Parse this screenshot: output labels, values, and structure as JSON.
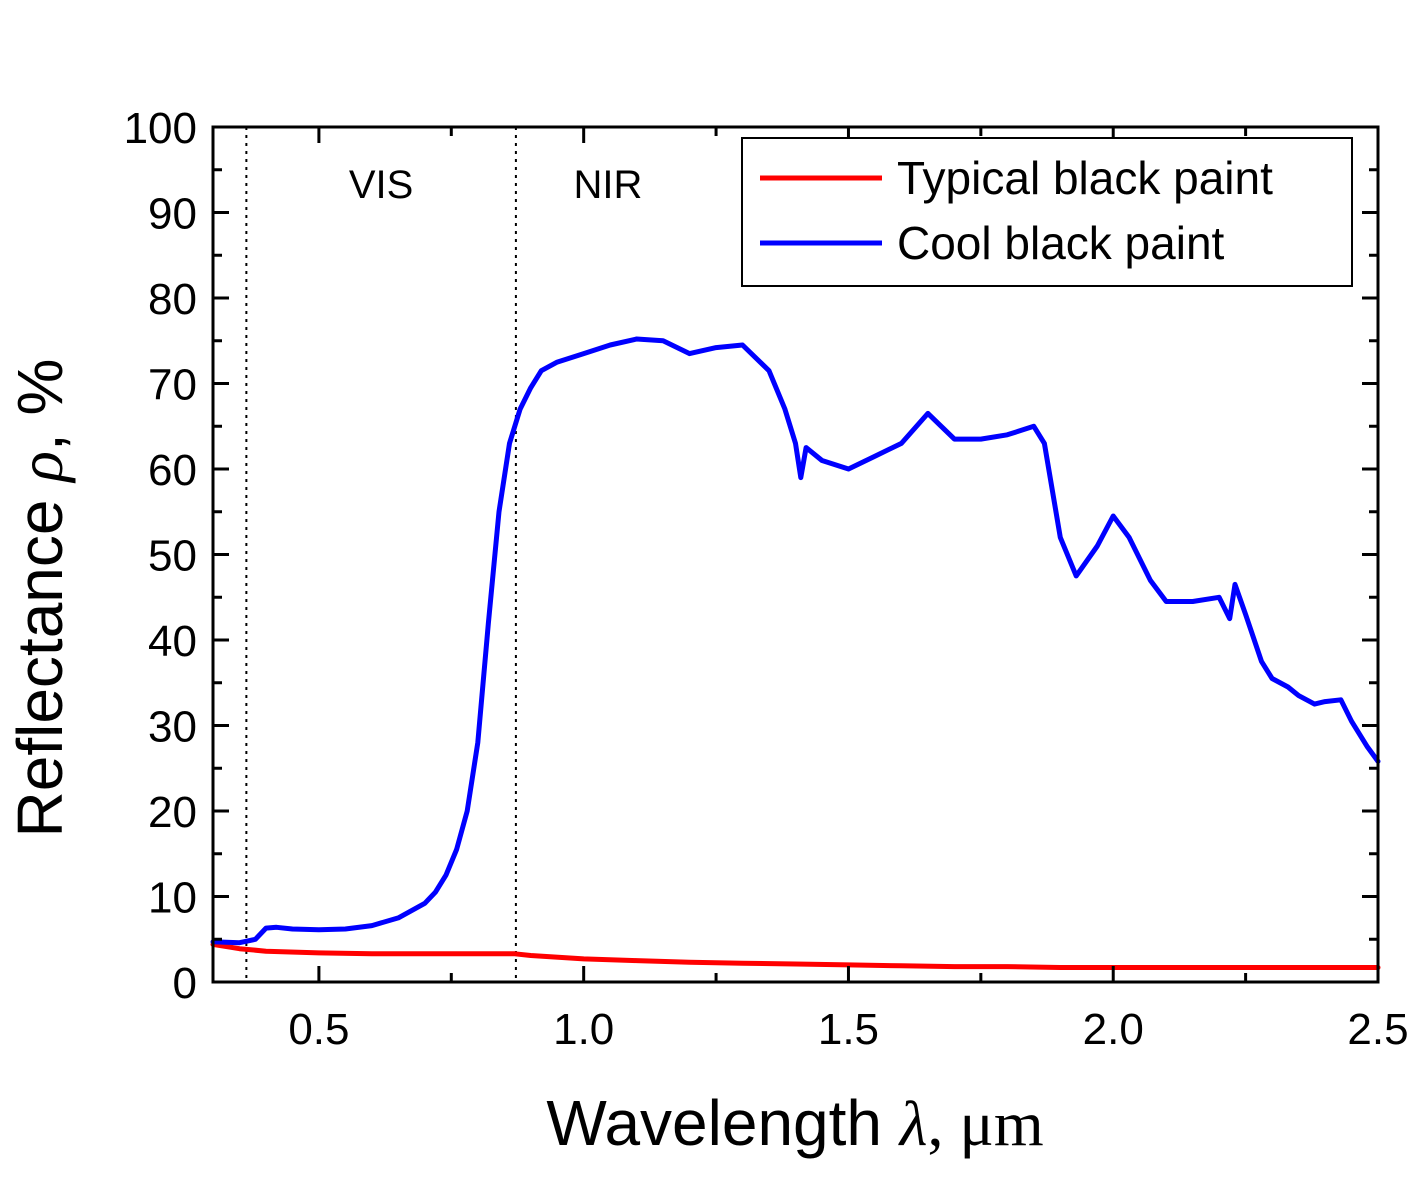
{
  "chart_data": {
    "type": "line",
    "xlabel": {
      "text": "Wavelength ",
      "symbol": "λ",
      "suffix": ", μm"
    },
    "ylabel": {
      "text": "Reflectance ",
      "symbol": "ρ",
      "suffix": ", %"
    },
    "xlim": [
      0.3,
      2.5
    ],
    "ylim": [
      0,
      100
    ],
    "xticks": [
      0.5,
      1.0,
      1.5,
      2.0,
      2.5
    ],
    "xtick_labels": [
      "0.5",
      "1.0",
      "1.5",
      "2.0",
      "2.5"
    ],
    "yticks": [
      0,
      10,
      20,
      30,
      40,
      50,
      60,
      70,
      80,
      90,
      100
    ],
    "ytick_labels": [
      "0",
      "10",
      "20",
      "30",
      "40",
      "50",
      "60",
      "70",
      "80",
      "90",
      "100"
    ],
    "legend_position": "top-right",
    "regions": [
      {
        "label": "VIS",
        "boundary_x": 0.363
      },
      {
        "label": "NIR",
        "boundary_x": 0.872
      }
    ],
    "series": [
      {
        "name": "Typical black paint",
        "color": "#ff0000",
        "x": [
          0.3,
          0.35,
          0.4,
          0.5,
          0.6,
          0.7,
          0.8,
          0.87,
          0.9,
          1.0,
          1.1,
          1.2,
          1.3,
          1.4,
          1.5,
          1.6,
          1.7,
          1.8,
          1.9,
          2.0,
          2.1,
          2.2,
          2.3,
          2.4,
          2.5
        ],
        "y": [
          4.4,
          3.9,
          3.6,
          3.4,
          3.3,
          3.3,
          3.3,
          3.3,
          3.1,
          2.7,
          2.5,
          2.3,
          2.2,
          2.1,
          2.0,
          1.9,
          1.8,
          1.8,
          1.7,
          1.7,
          1.7,
          1.7,
          1.7,
          1.7,
          1.7
        ]
      },
      {
        "name": "Cool black paint",
        "color": "#0000ff",
        "x": [
          0.3,
          0.35,
          0.38,
          0.4,
          0.42,
          0.45,
          0.5,
          0.55,
          0.6,
          0.65,
          0.7,
          0.72,
          0.74,
          0.76,
          0.78,
          0.8,
          0.82,
          0.84,
          0.86,
          0.88,
          0.9,
          0.92,
          0.95,
          1.0,
          1.05,
          1.1,
          1.15,
          1.2,
          1.25,
          1.3,
          1.35,
          1.38,
          1.4,
          1.41,
          1.42,
          1.45,
          1.5,
          1.55,
          1.6,
          1.65,
          1.7,
          1.75,
          1.8,
          1.85,
          1.87,
          1.9,
          1.93,
          1.97,
          2.0,
          2.03,
          2.07,
          2.1,
          2.15,
          2.2,
          2.22,
          2.23,
          2.25,
          2.28,
          2.3,
          2.33,
          2.35,
          2.38,
          2.4,
          2.43,
          2.45,
          2.48,
          2.5
        ],
        "y": [
          4.7,
          4.6,
          5.0,
          6.3,
          6.4,
          6.2,
          6.1,
          6.2,
          6.6,
          7.5,
          9.2,
          10.5,
          12.5,
          15.5,
          20.0,
          28.0,
          42.0,
          55.0,
          63.0,
          67.0,
          69.5,
          71.5,
          72.5,
          73.5,
          74.5,
          75.2,
          75.0,
          73.5,
          74.2,
          74.5,
          71.5,
          67.0,
          63.0,
          59.0,
          62.5,
          61.0,
          60.0,
          61.5,
          63.0,
          66.5,
          63.5,
          63.5,
          64.0,
          65.0,
          63.0,
          52.0,
          47.5,
          51.0,
          54.5,
          52.0,
          47.0,
          44.5,
          44.5,
          45.0,
          42.5,
          46.5,
          43.0,
          37.5,
          35.5,
          34.5,
          33.5,
          32.5,
          32.8,
          33.0,
          30.5,
          27.5,
          25.8
        ]
      }
    ]
  }
}
